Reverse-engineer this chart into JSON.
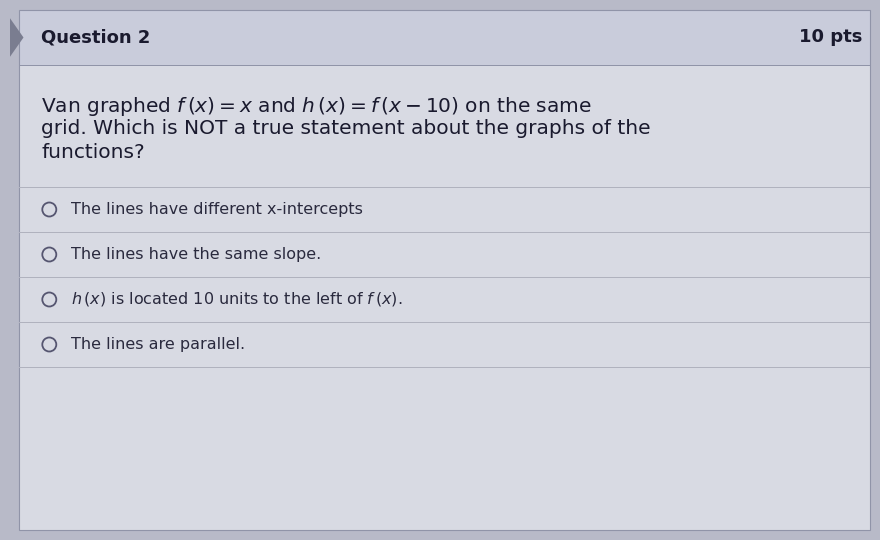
{
  "title": "Question 2",
  "pts": "10 pts",
  "q_line1": "Van graphed $f\\,(x)=x$ and $h\\,(x)=f\\,(x-10)$ on the same",
  "q_line2": "grid. Which is NOT a true statement about the graphs of the",
  "q_line3": "functions?",
  "options": [
    "The lines have different x-intercepts",
    "The lines have the same slope.",
    "$h\\,(x)$ is located 10 units to the left of $f\\,(x)$.",
    "The lines are parallel."
  ],
  "header_bg": "#c9ccdb",
  "body_bg": "#d8dae3",
  "outer_bg": "#b8bac8",
  "divider_color": "#b0b2be",
  "header_text_color": "#1a1a2e",
  "body_text_color": "#1a1a2e",
  "option_text_color": "#2a2a3e",
  "title_fontsize": 13,
  "pts_fontsize": 13,
  "question_fontsize": 14.5,
  "option_fontsize": 11.5,
  "triangle_color": "#7a7d90"
}
